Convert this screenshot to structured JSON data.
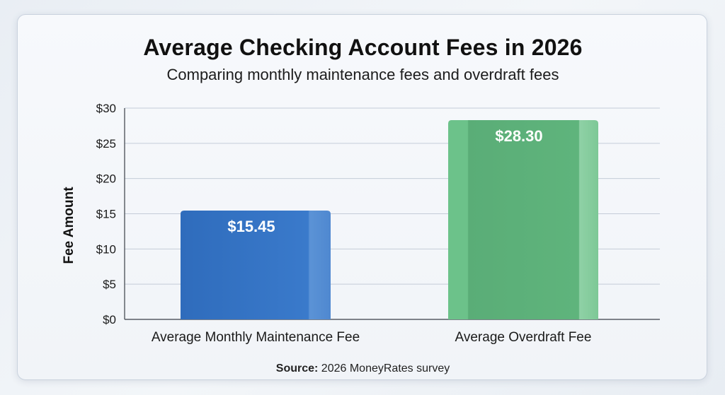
{
  "chart_data": {
    "type": "bar",
    "title": "Average Checking Account Fees in 2026",
    "subtitle": "Comparing monthly maintenance fees and overdraft fees",
    "ylabel": "Fee Amount",
    "xlabel": "",
    "categories": [
      "Average Monthly Maintenance Fee",
      "Average Overdraft Fee"
    ],
    "values": [
      15.45,
      28.3
    ],
    "data_labels": [
      "$15.45",
      "$28.30"
    ],
    "colors": [
      "#3474c4",
      "#5fb47c"
    ],
    "ylim": [
      0,
      30
    ],
    "yticks": [
      0,
      5,
      10,
      15,
      20,
      25,
      30
    ],
    "ytick_labels": [
      "$0",
      "$5",
      "$10",
      "$15",
      "$20",
      "$25",
      "$30"
    ],
    "grid": true,
    "legend": "none"
  },
  "source": {
    "label": "Source:",
    "text": "2026 MoneyRates survey"
  }
}
